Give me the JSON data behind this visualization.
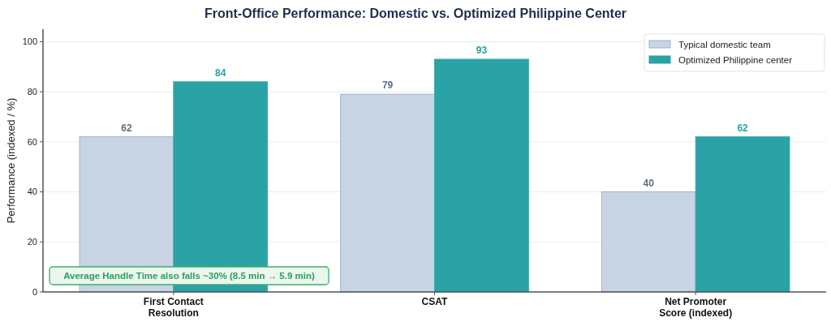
{
  "chart_data": {
    "type": "bar",
    "title": "Front-Office Performance: Domestic vs. Optimized Philippine Center",
    "ylabel": "Performance (indexed / %)",
    "categories": [
      "First Contact\nResolution",
      "CSAT",
      "Net Promoter\nScore (indexed)"
    ],
    "series": [
      {
        "name": "Typical domestic team",
        "color": "#c8d4e4",
        "values": [
          62,
          79,
          40
        ]
      },
      {
        "name": "Optimized Philippine center",
        "color": "#2aa2a6",
        "values": [
          84,
          93,
          62
        ]
      }
    ],
    "ylim": [
      0,
      105
    ],
    "yticks": [
      0,
      20,
      40,
      60,
      80,
      100
    ],
    "grid": "y",
    "legend": "top right",
    "data_labels": true,
    "annotations": [
      "Average Handle Time also falls ~30%  (8.5 min → 5.9 min)"
    ]
  }
}
